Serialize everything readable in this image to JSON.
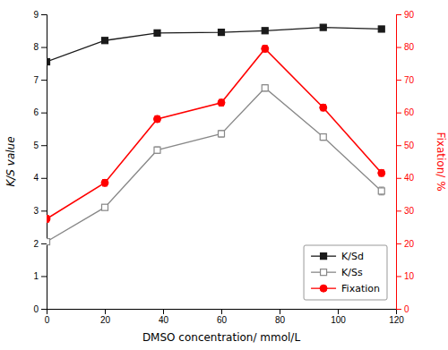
{
  "chart_data": {
    "type": "line",
    "x": [
      0,
      20,
      38,
      60,
      75,
      95,
      115
    ],
    "xlabel": "DMSO concentration/ mmol/L",
    "ylabel": "K/S value",
    "y2label": "Fixation/ %",
    "xlim": [
      0,
      120
    ],
    "xticks": [
      0,
      20,
      40,
      60,
      80,
      100,
      120
    ],
    "ylim": [
      0,
      9
    ],
    "yticks": [
      0,
      1,
      2,
      3,
      4,
      5,
      6,
      7,
      8,
      9
    ],
    "y2lim": [
      0,
      90
    ],
    "y2ticks": [
      0,
      10,
      20,
      30,
      40,
      50,
      60,
      70,
      80,
      90
    ],
    "grid": false,
    "legend": "lower right",
    "series": [
      {
        "name": "K/Sd",
        "color": "#1a1a1a",
        "marker": "square",
        "line_style": "solid",
        "values": [
          7.55,
          8.2,
          8.43,
          8.45,
          8.5,
          8.6,
          8.55
        ],
        "errors": [
          0.08,
          0.05,
          0.05,
          0.05,
          0.05,
          0.05,
          0.05
        ]
      },
      {
        "name": "K/Ss",
        "color": "#888888",
        "marker": "square-open",
        "line_style": "solid",
        "values": [
          2.05,
          3.1,
          4.85,
          5.35,
          6.75,
          5.25,
          3.6
        ],
        "errors": [
          0.08,
          0.08,
          0.1,
          0.1,
          0.1,
          0.1,
          0.12
        ]
      },
      {
        "name": "Fixation",
        "color": "#ff0000",
        "marker": "circle",
        "line_style": "solid",
        "axis": "y2",
        "values": [
          27.5,
          38.5,
          58,
          63,
          79.5,
          61.5,
          41.5
        ],
        "errors": [
          1.0,
          1.0,
          1.0,
          1.0,
          1.0,
          1.0,
          1.0
        ]
      }
    ]
  }
}
